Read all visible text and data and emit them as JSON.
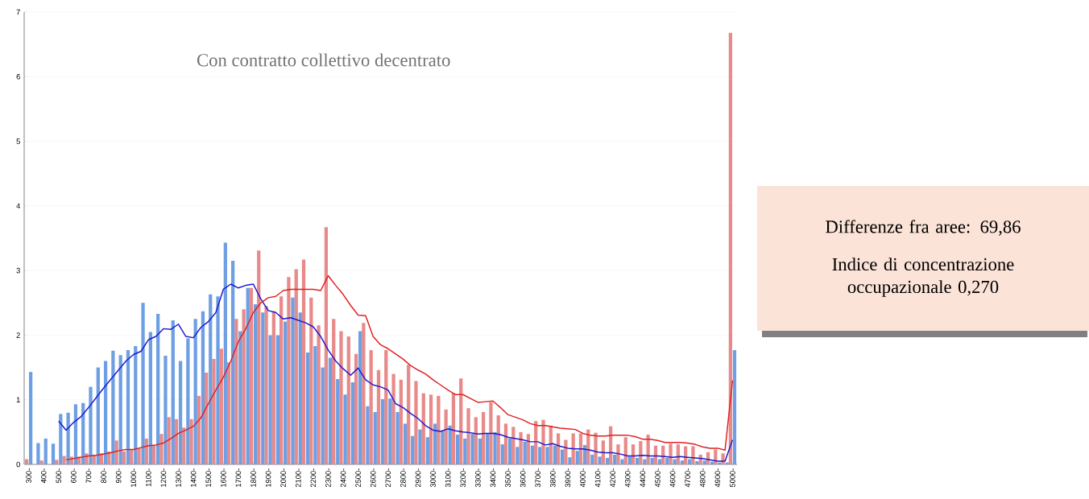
{
  "chart_data": {
    "type": "bar",
    "title": "Con contratto collettivo decentrato",
    "categories": [
      "300-",
      null,
      "400-",
      null,
      "500-",
      null,
      "600-",
      null,
      "700-",
      null,
      "800-",
      null,
      "900-",
      null,
      "1000-",
      null,
      "1100-",
      null,
      "1200-",
      null,
      "1300-",
      null,
      "1400-",
      null,
      "1500-",
      null,
      "1600-",
      null,
      "1700-",
      null,
      "1800-",
      null,
      "1900-",
      null,
      "2000-",
      null,
      "2100-",
      null,
      "2200-",
      null,
      "2300-",
      null,
      "2400-",
      null,
      "2500-",
      null,
      "2600-",
      null,
      "2700-",
      null,
      "2800-",
      null,
      "2900-",
      null,
      "3000-",
      null,
      "3100-",
      null,
      "3200-",
      null,
      "3300-",
      null,
      "3400-",
      null,
      "3500-",
      null,
      "3600-",
      null,
      "3700-",
      null,
      "3800-",
      null,
      "3900-",
      null,
      "4000-",
      null,
      "4100-",
      null,
      "4200-",
      null,
      "4300-",
      null,
      "4400-",
      null,
      "4500-",
      null,
      "4600-",
      null,
      "4700-",
      null,
      "4800-",
      null,
      "4900-",
      null,
      "5000-"
    ],
    "series": [
      {
        "color": "#e88a8a",
        "values": [
          0.08,
          0,
          0.06,
          0,
          0.07,
          0.13,
          0.12,
          0.12,
          0.17,
          0.15,
          0.17,
          0.2,
          0.37,
          0.2,
          0.23,
          0.25,
          0.4,
          0.3,
          0.47,
          0.73,
          0.7,
          0.57,
          0.7,
          1.06,
          1.42,
          1.63,
          1.79,
          1.58,
          2.25,
          2.4,
          2.73,
          3.31,
          2.45,
          2.37,
          2.6,
          2.9,
          3.02,
          3.17,
          2.58,
          2.15,
          3.67,
          2.25,
          2.06,
          1.98,
          1.71,
          2.19,
          1.77,
          1.46,
          1.77,
          1.4,
          1.31,
          1.54,
          1.29,
          1.1,
          1.08,
          1.06,
          0.85,
          1.1,
          1.33,
          0.87,
          0.73,
          0.81,
          0.96,
          0.76,
          0.63,
          0.58,
          0.5,
          0.47,
          0.67,
          0.69,
          0.6,
          0.48,
          0.38,
          0.48,
          0.48,
          0.54,
          0.49,
          0.37,
          0.59,
          0.31,
          0.42,
          0.31,
          0.36,
          0.46,
          0.29,
          0.29,
          0.32,
          0.31,
          0.28,
          0.28,
          0.15,
          0.19,
          0.23,
          0.17,
          6.68
        ]
      },
      {
        "color": "#6f9fe3",
        "values": [
          1.43,
          0.33,
          0.4,
          0.32,
          0.78,
          0.8,
          0.93,
          0.95,
          1.2,
          1.5,
          1.6,
          1.76,
          1.69,
          1.77,
          1.83,
          2.5,
          2.05,
          2.33,
          1.68,
          2.23,
          1.6,
          1.95,
          2.25,
          2.37,
          2.63,
          2.6,
          3.43,
          3.15,
          2.06,
          2.73,
          2.48,
          2.35,
          2.0,
          2.0,
          2.21,
          2.58,
          2.35,
          1.73,
          1.83,
          1.5,
          1.65,
          1.32,
          1.08,
          1.27,
          2.06,
          0.9,
          0.81,
          1.01,
          1.02,
          0.81,
          0.63,
          0.44,
          0.54,
          0.42,
          0.63,
          0.52,
          0.6,
          0.46,
          0.4,
          0.48,
          0.4,
          0.48,
          0.5,
          0.31,
          0.4,
          0.27,
          0.35,
          0.29,
          0.27,
          0.27,
          0.29,
          0.23,
          0.11,
          0.21,
          0.3,
          0.15,
          0.12,
          0.1,
          0.15,
          0.08,
          0.12,
          0.1,
          0.08,
          0.1,
          0.08,
          0.1,
          0.08,
          0.06,
          0.08,
          0.05,
          0.06,
          0.04,
          0.03,
          0.03,
          1.77
        ]
      },
      {
        "type": "line",
        "color": "#1a1ad0",
        "values": [
          null,
          null,
          null,
          null,
          0.67,
          0.53,
          0.65,
          0.74,
          0.88,
          1.03,
          1.18,
          1.32,
          1.46,
          1.6,
          1.7,
          1.75,
          1.93,
          1.98,
          2.1,
          2.09,
          2.17,
          1.98,
          1.96,
          2.12,
          2.21,
          2.35,
          2.71,
          2.79,
          2.73,
          2.77,
          2.79,
          2.56,
          2.38,
          2.35,
          2.25,
          2.27,
          2.23,
          2.19,
          2.13,
          1.98,
          1.77,
          1.6,
          1.48,
          1.38,
          1.49,
          1.31,
          1.23,
          1.2,
          1.15,
          0.94,
          0.88,
          0.79,
          0.71,
          0.6,
          0.53,
          0.51,
          0.55,
          0.52,
          0.5,
          0.49,
          0.47,
          0.48,
          0.48,
          0.46,
          0.42,
          0.4,
          0.38,
          0.35,
          0.35,
          0.3,
          0.32,
          0.28,
          0.25,
          0.24,
          0.24,
          0.22,
          0.19,
          0.18,
          0.18,
          0.16,
          0.13,
          0.13,
          0.14,
          0.13,
          0.13,
          0.12,
          0.11,
          0.12,
          0.11,
          0.1,
          0.09,
          0.07,
          0.05,
          0.05,
          0.38
        ]
      },
      {
        "type": "line",
        "color": "#e02020",
        "values": [
          null,
          null,
          null,
          null,
          null,
          0.07,
          0.09,
          0.11,
          0.13,
          0.14,
          0.16,
          0.18,
          0.21,
          0.23,
          0.23,
          0.26,
          0.29,
          0.3,
          0.33,
          0.4,
          0.48,
          0.53,
          0.59,
          0.72,
          0.94,
          1.15,
          1.35,
          1.6,
          1.9,
          2.1,
          2.35,
          2.5,
          2.58,
          2.6,
          2.69,
          2.71,
          2.71,
          2.71,
          2.71,
          2.69,
          2.92,
          2.77,
          2.63,
          2.46,
          2.31,
          2.3,
          1.98,
          1.85,
          1.79,
          1.71,
          1.63,
          1.53,
          1.46,
          1.4,
          1.31,
          1.23,
          1.15,
          1.08,
          1.08,
          1.02,
          0.96,
          0.97,
          0.98,
          0.88,
          0.77,
          0.73,
          0.69,
          0.63,
          0.6,
          0.6,
          0.58,
          0.56,
          0.55,
          0.54,
          0.48,
          0.45,
          0.44,
          0.44,
          0.45,
          0.45,
          0.45,
          0.43,
          0.39,
          0.39,
          0.37,
          0.34,
          0.34,
          0.34,
          0.33,
          0.31,
          0.27,
          0.25,
          0.25,
          0.22,
          1.3
        ]
      }
    ],
    "ylim": [
      0,
      7
    ],
    "yticks": [
      0,
      1,
      2,
      3,
      4,
      5,
      6,
      7
    ],
    "grid": "y",
    "annotations": [
      "Differenze fra aree: 69,86",
      "Indice di concentrazione occupazionale 0,270"
    ]
  }
}
